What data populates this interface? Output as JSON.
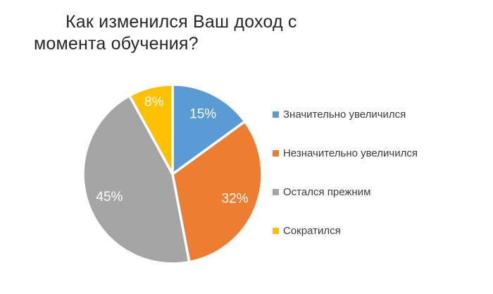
{
  "page": {
    "background": "#FFFFFF"
  },
  "title": {
    "line1": "Как изменился Ваш доход с",
    "line2": "момента обучения?",
    "color": "#262626"
  },
  "chart_data": {
    "type": "pie",
    "title": "Как изменился Ваш доход с момента обучения?",
    "slices": [
      {
        "label": "Значительно увеличился",
        "value": 15,
        "display": "15%",
        "color": "#5B9BD5"
      },
      {
        "label": "Незначительно увеличился",
        "value": 32,
        "display": "32%",
        "color": "#ED7D31"
      },
      {
        "label": "Остался прежним",
        "value": 45,
        "display": "45%",
        "color": "#A5A5A5"
      },
      {
        "label": "Сократился",
        "value": 8,
        "display": "8%",
        "color": "#FFC000"
      }
    ],
    "start_angle_deg": 0,
    "direction": "clockwise",
    "slice_label_color": "#FFFFFF",
    "separator_color": "#FFFFFF",
    "legend_position": "right",
    "legend_text_color": "#3B3B3B",
    "grid": false
  }
}
